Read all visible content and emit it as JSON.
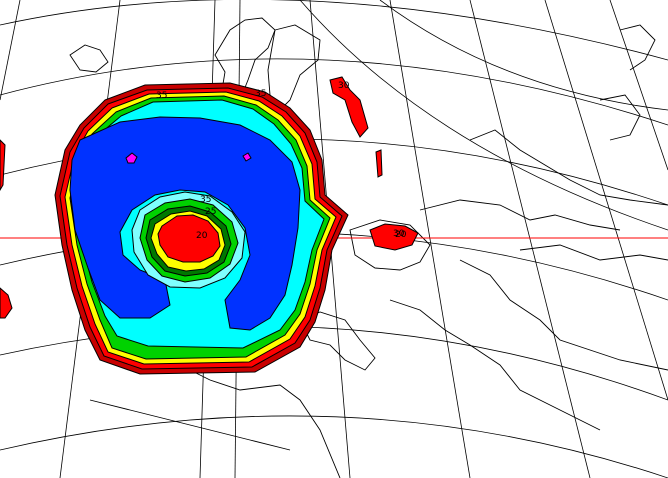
{
  "map": {
    "background": "#ffffff",
    "line_color": "#000000",
    "marker_line_color": "#ff0000",
    "contour_labels": [
      "35",
      "35",
      "30",
      "35",
      "25",
      "20",
      "30",
      "20"
    ],
    "contour_colors": {
      "outer_dark_red": "#c80000",
      "red": "#ff0000",
      "yellow": "#ffff00",
      "green": "#00d200",
      "dark_green": "#007800",
      "cyan": "#00ffff",
      "light_cyan": "#7fffff",
      "blue": "#0032ff",
      "magenta": "#ff00ff"
    }
  }
}
